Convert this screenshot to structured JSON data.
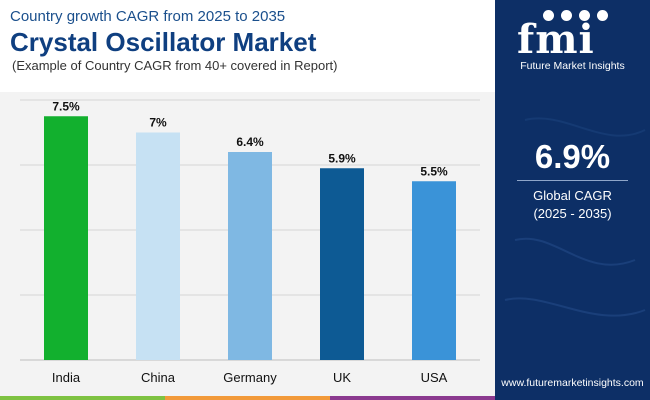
{
  "header": {
    "subtitle_top": "Country growth CAGR from 2025 to 2035",
    "title": "Crystal Oscillator Market",
    "note": "(Example of Country CAGR from 40+ covered in Report)"
  },
  "sidebar": {
    "logo_text": "fmi",
    "logo_caption": "Future Market Insights",
    "global_value": "6.9%",
    "global_label": "Global CAGR",
    "global_period": "(2025 - 2035)",
    "website": "www.futuremarketinsights.com"
  },
  "colors": {
    "India": "#12b02e",
    "China": "#c6e1f3",
    "Germany": "#7fb8e3",
    "UK": "#0d5a94",
    "USA": "#3a93d8",
    "sidebar_bg": "#0d2f66",
    "title": "#0f3f80"
  },
  "chart_data": {
    "type": "bar",
    "categories": [
      "India",
      "China",
      "Germany",
      "UK",
      "USA"
    ],
    "values": [
      7.5,
      7.0,
      6.4,
      5.9,
      5.5
    ],
    "labels": [
      "7.5%",
      "7%",
      "6.4%",
      "5.9%",
      "5.5%"
    ],
    "ylim": [
      0,
      8
    ],
    "grid": true,
    "xlabel": "",
    "ylabel": ""
  }
}
